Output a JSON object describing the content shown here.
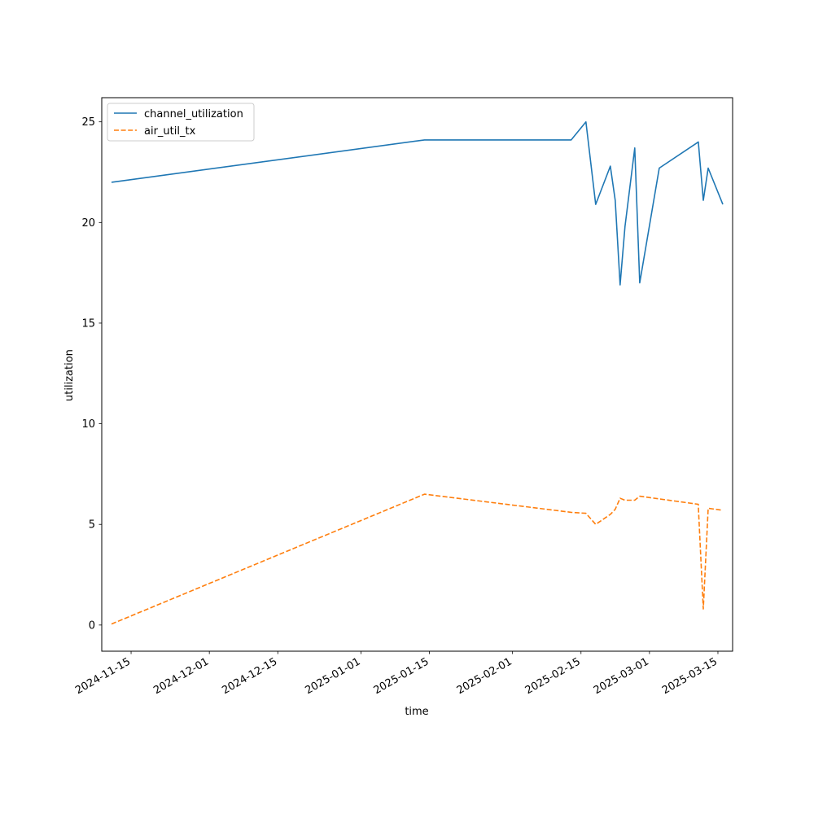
{
  "chart_data": {
    "type": "line",
    "title": "",
    "xlabel": "time",
    "ylabel": "utilization",
    "x_tick_labels": [
      "2024-11-15",
      "2024-12-01",
      "2024-12-15",
      "2025-01-01",
      "2025-01-15",
      "2025-02-01",
      "2025-02-15",
      "2025-03-01",
      "2025-03-15"
    ],
    "y_tick_labels": [
      "0",
      "5",
      "10",
      "15",
      "20",
      "25"
    ],
    "xlim": [
      "2024-11-09",
      "2025-03-18"
    ],
    "ylim": [
      -1.3,
      26.2
    ],
    "grid": false,
    "legend_position": "upper left",
    "series": [
      {
        "name": "channel_utilization",
        "color": "#1f77b4",
        "line_style": "solid",
        "points": [
          [
            "2024-11-11",
            22.0
          ],
          [
            "2025-01-14",
            24.1
          ],
          [
            "2025-02-13",
            24.1
          ],
          [
            "2025-02-16",
            25.0
          ],
          [
            "2025-02-18",
            20.9
          ],
          [
            "2025-02-21",
            22.8
          ],
          [
            "2025-02-22",
            21.1
          ],
          [
            "2025-02-23",
            16.9
          ],
          [
            "2025-02-24",
            19.8
          ],
          [
            "2025-02-26",
            23.7
          ],
          [
            "2025-02-27",
            17.0
          ],
          [
            "2025-03-03",
            22.7
          ],
          [
            "2025-03-11",
            24.0
          ],
          [
            "2025-03-12",
            21.1
          ],
          [
            "2025-03-13",
            22.7
          ],
          [
            "2025-03-16",
            20.9
          ]
        ]
      },
      {
        "name": "air_util_tx",
        "color": "#ff7f0e",
        "line_style": "dashed",
        "points": [
          [
            "2024-11-11",
            0.05
          ],
          [
            "2025-01-14",
            6.5
          ],
          [
            "2025-02-13",
            5.6
          ],
          [
            "2025-02-16",
            5.55
          ],
          [
            "2025-02-18",
            5.0
          ],
          [
            "2025-02-21",
            5.5
          ],
          [
            "2025-02-22",
            5.75
          ],
          [
            "2025-02-23",
            6.3
          ],
          [
            "2025-02-24",
            6.2
          ],
          [
            "2025-02-26",
            6.2
          ],
          [
            "2025-02-27",
            6.4
          ],
          [
            "2025-03-11",
            6.0
          ],
          [
            "2025-03-11",
            5.9
          ],
          [
            "2025-03-12",
            0.8
          ],
          [
            "2025-03-13",
            5.8
          ],
          [
            "2025-03-16",
            5.7
          ]
        ]
      }
    ]
  }
}
